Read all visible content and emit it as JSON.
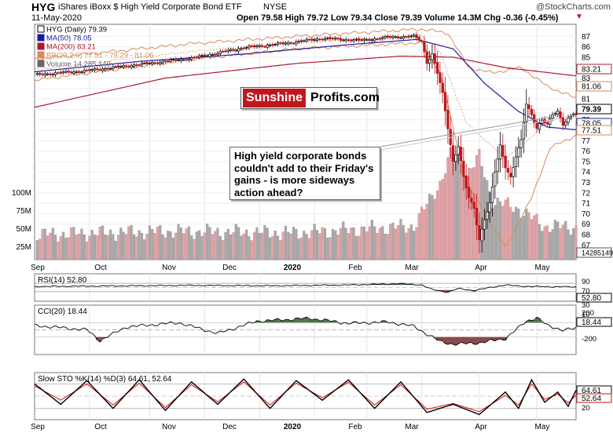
{
  "header": {
    "symbol": "HYG",
    "name": "iShares iBoxx $ High Yield Corporate Bond ETF",
    "exchange": "NYSE",
    "date": "11-May-2020",
    "ohlc": "Open 79.58  High 79.72  Low 79.34  Close 79.39  Volume 14.3M  Chg -0.36 (-0.45%)",
    "change_arrow": "▼",
    "credit": "@StockCharts.com"
  },
  "legend": {
    "symbol": "HYG (Daily) 79.39",
    "ma50": "MA(50) 78.05",
    "ma200": "MA(200) 83.21",
    "bb": "BB(20,2.0) 77.51 - 79.29 - 81.06",
    "volume": "Volume 14,285,149"
  },
  "logo": {
    "part1": "Sunshine",
    "part2": "Profits.com"
  },
  "annotation": "High yield corporate bonds couldn't add to their Friday's gains - is more sideways action ahead?",
  "colors": {
    "ma50": "#1c1c9c",
    "ma200": "#b0182a",
    "bb": "#d98a5a",
    "up": "#000000",
    "down": "#c0171e",
    "vol_up": "#a8a8a8",
    "vol_down": "#e0a3a7",
    "fill_pos": "#4f7a4c",
    "fill_neg": "#8c4a4a"
  },
  "chart_data": [
    {
      "type": "candlestick",
      "title": "HYG (Daily) 79.39",
      "x_tick_labels": [
        "Sep",
        "Oct",
        "Nov",
        "Dec",
        "2020",
        "Feb",
        "Mar",
        "Apr",
        "May"
      ],
      "y_tick_labels": [
        "87",
        "86",
        "85",
        "84",
        "83",
        "82",
        "81",
        "80",
        "79",
        "78",
        "77",
        "76",
        "75",
        "74",
        "73",
        "72",
        "71",
        "70",
        "69",
        "68",
        "67"
      ],
      "ylim": [
        66.5,
        88
      ],
      "price_tags": [
        "83.21",
        "81.06",
        "79.39",
        "78.05",
        "77.51",
        "14285149"
      ],
      "price_tag_values": [
        83.21,
        81.06,
        79.39,
        78.05,
        77.51
      ],
      "volume_tick_labels": [
        "100M",
        "75M",
        "50M",
        "25M"
      ],
      "series": [
        {
          "name": "MA(50) 78.05",
          "anchors": [
            [
              0,
              83.6
            ],
            [
              40,
              84.6
            ],
            [
              80,
              85.3
            ],
            [
              120,
              86.2
            ],
            [
              146,
              86.7
            ],
            [
              160,
              85.8
            ],
            [
              172,
              82.5
            ],
            [
              185,
              79.8
            ],
            [
              196,
              78.3
            ],
            [
              207,
              78.05
            ]
          ]
        },
        {
          "name": "MA(200) 83.21",
          "anchors": [
            [
              0,
              80.2
            ],
            [
              50,
              83.0
            ],
            [
              100,
              84.4
            ],
            [
              140,
              85.1
            ],
            [
              160,
              85.0
            ],
            [
              180,
              84.0
            ],
            [
              207,
              83.21
            ]
          ]
        },
        {
          "name": "BB(20,2.0) upper",
          "anchors": [
            [
              0,
              84.8
            ],
            [
              60,
              86.3
            ],
            [
              100,
              87.0
            ],
            [
              148,
              87.7
            ],
            [
              158,
              87.3
            ],
            [
              166,
              84.0
            ],
            [
              175,
              83.5
            ],
            [
              186,
              84.0
            ],
            [
              196,
              82.2
            ],
            [
              207,
              81.06
            ]
          ]
        },
        {
          "name": "BB(20,2.0) lower",
          "anchors": [
            [
              0,
              82.8
            ],
            [
              60,
              84.8
            ],
            [
              100,
              85.8
            ],
            [
              148,
              86.4
            ],
            [
              155,
              83.5
            ],
            [
              165,
              73.0
            ],
            [
              180,
              66.8
            ],
            [
              190,
              71.5
            ],
            [
              197,
              76.3
            ],
            [
              207,
              77.51
            ]
          ]
        }
      ],
      "price_path": [
        [
          0,
          83.3
        ],
        [
          20,
          83.7
        ],
        [
          40,
          84.3
        ],
        [
          60,
          84.9
        ],
        [
          70,
          85.4
        ],
        [
          80,
          85.9
        ],
        [
          95,
          86.3
        ],
        [
          110,
          86.8
        ],
        [
          125,
          86.6
        ],
        [
          135,
          86.9
        ],
        [
          145,
          87.0
        ],
        [
          148,
          86.5
        ],
        [
          150,
          84.5
        ],
        [
          152,
          85.3
        ],
        [
          154,
          83.5
        ],
        [
          156,
          81.5
        ],
        [
          158,
          78.2
        ],
        [
          160,
          75.0
        ],
        [
          162,
          76.5
        ],
        [
          164,
          73.5
        ],
        [
          166,
          71.5
        ],
        [
          168,
          70.5
        ],
        [
          170,
          67.5
        ],
        [
          172,
          69.5
        ],
        [
          174,
          71.0
        ],
        [
          176,
          74.0
        ],
        [
          178,
          76.5
        ],
        [
          180,
          74.5
        ],
        [
          182,
          73.5
        ],
        [
          184,
          75.5
        ],
        [
          186,
          77.0
        ],
        [
          188,
          80.5
        ],
        [
          190,
          79.5
        ],
        [
          192,
          78.2
        ],
        [
          194,
          79.0
        ],
        [
          196,
          78.5
        ],
        [
          198,
          79.5
        ],
        [
          200,
          79.8
        ],
        [
          202,
          78.6
        ],
        [
          204,
          79.1
        ],
        [
          206,
          79.6
        ],
        [
          207,
          79.39
        ]
      ],
      "volume_path": [
        [
          0,
          10
        ],
        [
          50,
          12
        ],
        [
          100,
          11
        ],
        [
          145,
          15
        ],
        [
          155,
          40
        ],
        [
          160,
          60
        ],
        [
          165,
          45
        ],
        [
          170,
          55
        ],
        [
          175,
          30
        ],
        [
          185,
          25
        ],
        [
          195,
          15
        ],
        [
          207,
          14.3
        ]
      ]
    },
    {
      "type": "line",
      "title": "RSI(14) 52.80",
      "y_tick_labels": [
        "90",
        "70",
        "50",
        "30",
        "10"
      ],
      "last_label": "52.80",
      "ylim": [
        0,
        100
      ],
      "series": [
        {
          "name": "RSI(14) 52.80",
          "anchors": [
            [
              0,
              55
            ],
            [
              30,
              57
            ],
            [
              60,
              60
            ],
            [
              90,
              58
            ],
            [
              120,
              62
            ],
            [
              140,
              68
            ],
            [
              148,
              62
            ],
            [
              152,
              40
            ],
            [
              158,
              28
            ],
            [
              162,
              45
            ],
            [
              168,
              35
            ],
            [
              174,
              50
            ],
            [
              180,
              62
            ],
            [
              186,
              56
            ],
            [
              195,
              54
            ],
            [
              207,
              52.8
            ]
          ]
        }
      ]
    },
    {
      "type": "line",
      "title": "CCI(20) 18.44",
      "y_tick_labels": [
        "200",
        "18.44",
        "-200"
      ],
      "last_label": "18.44",
      "ylim": [
        -300,
        300
      ],
      "series": [
        {
          "name": "CCI(20) 18.44",
          "anchors": [
            [
              0,
              60
            ],
            [
              20,
              0
            ],
            [
              25,
              -150
            ],
            [
              35,
              40
            ],
            [
              55,
              100
            ],
            [
              70,
              -50
            ],
            [
              85,
              120
            ],
            [
              105,
              160
            ],
            [
              120,
              90
            ],
            [
              135,
              110
            ],
            [
              145,
              50
            ],
            [
              150,
              -60
            ],
            [
              155,
              -160
            ],
            [
              160,
              -200
            ],
            [
              170,
              -180
            ],
            [
              180,
              -120
            ],
            [
              188,
              120
            ],
            [
              192,
              170
            ],
            [
              196,
              60
            ],
            [
              202,
              0
            ],
            [
              207,
              18.44
            ]
          ]
        }
      ]
    },
    {
      "type": "line",
      "title": "Slow STO %K(14) %D(3) 64.61, 52.64",
      "y_tick_labels": [
        "64.61",
        "52.64",
        "20"
      ],
      "ylim": [
        0,
        100
      ],
      "series": [
        {
          "name": "%K(14) 64.61",
          "anchors": [
            [
              0,
              80
            ],
            [
              10,
              30
            ],
            [
              20,
              88
            ],
            [
              30,
              20
            ],
            [
              40,
              90
            ],
            [
              50,
              15
            ],
            [
              60,
              85
            ],
            [
              70,
              30
            ],
            [
              80,
              92
            ],
            [
              90,
              20
            ],
            [
              100,
              88
            ],
            [
              110,
              40
            ],
            [
              120,
              90
            ],
            [
              130,
              20
            ],
            [
              140,
              85
            ],
            [
              150,
              10
            ],
            [
              160,
              30
            ],
            [
              170,
              5
            ],
            [
              180,
              60
            ],
            [
              185,
              20
            ],
            [
              190,
              90
            ],
            [
              195,
              35
            ],
            [
              200,
              60
            ],
            [
              204,
              25
            ],
            [
              207,
              64.61
            ]
          ]
        },
        {
          "name": "%D(3) 52.64",
          "anchors": [
            [
              0,
              75
            ],
            [
              10,
              40
            ],
            [
              20,
              80
            ],
            [
              30,
              28
            ],
            [
              40,
              82
            ],
            [
              50,
              22
            ],
            [
              60,
              78
            ],
            [
              70,
              36
            ],
            [
              80,
              85
            ],
            [
              90,
              28
            ],
            [
              100,
              82
            ],
            [
              110,
              46
            ],
            [
              120,
              84
            ],
            [
              130,
              28
            ],
            [
              140,
              78
            ],
            [
              150,
              18
            ],
            [
              160,
              32
            ],
            [
              170,
              12
            ],
            [
              180,
              52
            ],
            [
              185,
              28
            ],
            [
              190,
              80
            ],
            [
              195,
              42
            ],
            [
              200,
              55
            ],
            [
              204,
              33
            ],
            [
              207,
              52.64
            ]
          ]
        }
      ]
    }
  ]
}
